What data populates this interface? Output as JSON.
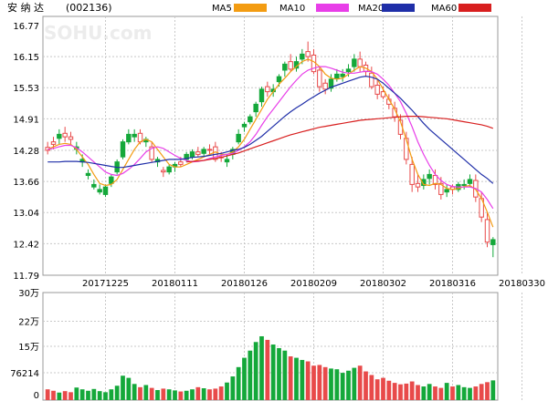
{
  "header": {
    "stock_name": "安 纳 达",
    "stock_code": "(002136)",
    "legend": [
      {
        "label": "MA5",
        "color": "#f39c12"
      },
      {
        "label": "MA10",
        "color": "#e83ee8"
      },
      {
        "label": "MA20",
        "color": "#1f2ea8"
      },
      {
        "label": "MA60",
        "color": "#d81f1f"
      }
    ]
  },
  "watermark": "SOHU.com",
  "chart_data": {
    "type": "candlestick",
    "colors": {
      "up": "#e84a4a",
      "down": "#14a83a",
      "grid": "#c8c8c8"
    },
    "price_axis": {
      "range": [
        11.79,
        16.77
      ],
      "ticks": [
        "16.77",
        "16.15",
        "15.53",
        "14.91",
        "14.28",
        "13.66",
        "13.04",
        "12.42",
        "11.79"
      ]
    },
    "volume_axis": {
      "range": [
        0,
        300000
      ],
      "ticks": [
        {
          "label": "30万",
          "value": 300000
        },
        {
          "label": "22万",
          "value": 220000
        },
        {
          "label": "15万",
          "value": 150000
        },
        {
          "label": "76214",
          "value": 76214
        },
        {
          "label": "0",
          "value": 0
        }
      ]
    },
    "x_labels": [
      {
        "label": "20171225",
        "index": 10
      },
      {
        "label": "20180111",
        "index": 22
      },
      {
        "label": "20180126",
        "index": 34
      },
      {
        "label": "20180209",
        "index": 46
      },
      {
        "label": "20180302",
        "index": 58
      },
      {
        "label": "20180316",
        "index": 70
      },
      {
        "label": "20180330",
        "index": 82
      }
    ],
    "close": [
      14.34,
      14.45,
      14.52,
      14.62,
      14.55,
      14.3,
      14.05,
      13.78,
      13.55,
      13.45,
      13.4,
      13.62,
      13.85,
      14.15,
      14.45,
      14.55,
      14.62,
      14.45,
      14.35,
      14.05,
      13.88,
      13.85,
      13.95,
      14.05,
      14.1,
      14.15,
      14.25,
      14.22,
      14.3,
      14.35,
      14.15,
      14.05,
      14.2,
      14.45,
      14.75,
      14.85,
      15.05,
      15.25,
      15.55,
      15.45,
      15.65,
      15.88,
      16.05,
      15.92,
      16.1,
      16.25,
      16.18,
      15.88,
      15.62,
      15.52,
      15.72,
      15.75,
      15.85,
      15.95,
      16.1,
      15.98,
      15.82,
      15.58,
      15.45,
      15.3,
      15.12,
      14.88,
      14.52,
      14.0,
      13.62,
      13.58,
      13.72,
      13.78,
      13.62,
      13.45,
      13.55,
      13.5,
      13.58,
      13.62,
      13.68,
      13.32,
      12.9,
      12.4
    ],
    "open": [
      14.28,
      14.4,
      14.6,
      14.55,
      14.5,
      14.35,
      14.1,
      13.82,
      13.6,
      13.5,
      13.55,
      13.75,
      14.05,
      14.45,
      14.6,
      14.6,
      14.45,
      14.5,
      14.1,
      14.1,
      13.85,
      13.95,
      14.0,
      14.0,
      14.2,
      14.25,
      14.2,
      14.3,
      14.3,
      14.1,
      14.15,
      14.1,
      14.3,
      14.6,
      14.8,
      14.95,
      15.2,
      15.5,
      15.45,
      15.5,
      15.75,
      16.0,
      15.9,
      16.05,
      16.2,
      16.15,
      15.85,
      15.55,
      15.5,
      15.7,
      15.8,
      15.8,
      15.9,
      16.1,
      15.95,
      15.85,
      15.55,
      15.4,
      15.35,
      15.2,
      14.95,
      14.6,
      14.1,
      13.6,
      13.55,
      13.7,
      13.8,
      13.6,
      13.4,
      13.5,
      13.5,
      13.6,
      13.6,
      13.7,
      13.35,
      12.95,
      12.45,
      12.5
    ],
    "high": [
      14.45,
      14.55,
      14.7,
      14.75,
      14.65,
      14.45,
      14.2,
      13.9,
      13.7,
      13.6,
      13.6,
      13.8,
      14.1,
      14.5,
      14.7,
      14.7,
      14.7,
      14.55,
      14.45,
      14.15,
      13.95,
      14.0,
      14.05,
      14.15,
      14.25,
      14.3,
      14.35,
      14.35,
      14.4,
      14.45,
      14.25,
      14.2,
      14.35,
      14.7,
      14.85,
      15.0,
      15.25,
      15.55,
      15.65,
      15.6,
      15.8,
      16.05,
      16.2,
      16.15,
      16.3,
      16.45,
      16.3,
      15.95,
      15.7,
      15.8,
      15.9,
      15.9,
      16.0,
      16.2,
      16.25,
      16.05,
      15.95,
      15.7,
      15.55,
      15.4,
      15.25,
      15.0,
      14.65,
      14.15,
      13.8,
      13.8,
      13.9,
      13.9,
      13.75,
      13.6,
      13.6,
      13.65,
      13.7,
      13.8,
      13.8,
      13.45,
      13.05,
      12.55
    ],
    "low": [
      14.2,
      14.3,
      14.4,
      14.45,
      14.4,
      14.2,
      13.95,
      13.7,
      13.5,
      13.4,
      13.35,
      13.55,
      13.8,
      14.1,
      14.4,
      14.45,
      14.4,
      14.35,
      14.05,
      13.95,
      13.75,
      13.8,
      13.85,
      13.95,
      14.05,
      14.1,
      14.15,
      14.15,
      14.2,
      14.05,
      14.05,
      13.95,
      14.1,
      14.4,
      14.65,
      14.8,
      14.95,
      15.15,
      15.35,
      15.35,
      15.55,
      15.75,
      15.85,
      15.85,
      16.0,
      16.05,
      15.8,
      15.45,
      15.4,
      15.45,
      15.65,
      15.65,
      15.75,
      15.85,
      15.85,
      15.75,
      15.5,
      15.3,
      15.3,
      15.1,
      14.85,
      14.5,
      14.0,
      13.45,
      13.45,
      13.5,
      13.6,
      13.5,
      13.3,
      13.35,
      13.4,
      13.45,
      13.5,
      13.55,
      13.25,
      12.85,
      12.35,
      12.15
    ],
    "volume": [
      30000,
      26000,
      21000,
      25000,
      22000,
      35000,
      30000,
      26000,
      31000,
      25000,
      22000,
      30000,
      40000,
      68000,
      62000,
      45000,
      36000,
      42000,
      34000,
      28000,
      32000,
      30000,
      27000,
      24000,
      26000,
      30000,
      36000,
      33000,
      30000,
      32000,
      38000,
      49000,
      66000,
      92000,
      118000,
      138000,
      162000,
      178000,
      168000,
      155000,
      145000,
      138000,
      122000,
      118000,
      112000,
      108000,
      96000,
      98000,
      92000,
      88000,
      86000,
      76000,
      82000,
      90000,
      96000,
      80000,
      70000,
      58000,
      62000,
      54000,
      48000,
      44000,
      46000,
      52000,
      42000,
      38000,
      45000,
      38000,
      34000,
      48000,
      38000,
      42000,
      36000,
      34000,
      38000,
      45000,
      50000,
      55000
    ],
    "ma5": [
      14.3,
      14.35,
      14.4,
      14.42,
      14.4,
      14.3,
      14.15,
      14.0,
      13.8,
      13.62,
      13.58,
      13.6,
      13.7,
      13.9,
      14.1,
      14.3,
      14.45,
      14.5,
      14.45,
      14.3,
      14.15,
      14.0,
      13.95,
      13.95,
      14.0,
      14.05,
      14.1,
      14.15,
      14.2,
      14.25,
      14.2,
      14.2,
      14.25,
      14.35,
      14.5,
      14.7,
      14.9,
      15.1,
      15.3,
      15.45,
      15.6,
      15.72,
      15.85,
      15.95,
      16.05,
      16.1,
      16.05,
      15.95,
      15.8,
      15.72,
      15.7,
      15.72,
      15.8,
      15.88,
      15.95,
      15.92,
      15.85,
      15.7,
      15.5,
      15.3,
      15.1,
      14.85,
      14.5,
      14.1,
      13.8,
      13.6,
      13.58,
      13.62,
      13.6,
      13.52,
      13.5,
      13.52,
      13.56,
      13.58,
      13.5,
      13.32,
      13.05,
      12.75
    ],
    "ma10": [
      14.3,
      14.32,
      14.35,
      14.38,
      14.38,
      14.33,
      14.25,
      14.15,
      14.05,
      13.95,
      13.85,
      13.8,
      13.78,
      13.82,
      13.9,
      14.0,
      14.12,
      14.25,
      14.32,
      14.35,
      14.32,
      14.25,
      14.18,
      14.12,
      14.08,
      14.05,
      14.06,
      14.08,
      14.12,
      14.15,
      14.18,
      14.2,
      14.22,
      14.28,
      14.35,
      14.45,
      14.6,
      14.78,
      14.95,
      15.1,
      15.25,
      15.4,
      15.55,
      15.68,
      15.8,
      15.88,
      15.92,
      15.95,
      15.95,
      15.92,
      15.88,
      15.84,
      15.82,
      15.82,
      15.84,
      15.86,
      15.85,
      15.8,
      15.7,
      15.58,
      15.42,
      15.25,
      15.02,
      14.75,
      14.45,
      14.2,
      13.98,
      13.8,
      13.68,
      13.6,
      13.56,
      13.55,
      13.55,
      13.55,
      13.52,
      13.45,
      13.3,
      13.12
    ],
    "ma20": [
      14.05,
      14.05,
      14.05,
      14.06,
      14.06,
      14.06,
      14.05,
      14.04,
      14.02,
      14.0,
      13.98,
      13.96,
      13.94,
      13.94,
      13.96,
      13.98,
      14.0,
      14.02,
      14.04,
      14.06,
      14.08,
      14.1,
      14.1,
      14.1,
      14.12,
      14.14,
      14.15,
      14.16,
      14.18,
      14.2,
      14.22,
      14.25,
      14.28,
      14.3,
      14.34,
      14.4,
      14.48,
      14.56,
      14.66,
      14.76,
      14.86,
      14.96,
      15.05,
      15.13,
      15.2,
      15.28,
      15.35,
      15.42,
      15.48,
      15.54,
      15.58,
      15.62,
      15.66,
      15.7,
      15.74,
      15.76,
      15.74,
      15.7,
      15.62,
      15.52,
      15.42,
      15.32,
      15.2,
      15.08,
      14.95,
      14.82,
      14.7,
      14.6,
      14.5,
      14.4,
      14.3,
      14.2,
      14.1,
      14.0,
      13.9,
      13.8,
      13.72,
      13.62
    ],
    "ma60": [
      null,
      null,
      null,
      null,
      null,
      null,
      null,
      null,
      null,
      null,
      null,
      null,
      null,
      null,
      null,
      null,
      null,
      null,
      null,
      null,
      null,
      null,
      null,
      null,
      14.05,
      14.06,
      14.07,
      14.08,
      14.1,
      14.12,
      14.14,
      14.17,
      14.2,
      14.23,
      14.27,
      14.31,
      14.35,
      14.39,
      14.43,
      14.47,
      14.51,
      14.55,
      14.59,
      14.62,
      14.65,
      14.68,
      14.71,
      14.74,
      14.76,
      14.78,
      14.8,
      14.82,
      14.84,
      14.86,
      14.88,
      14.89,
      14.9,
      14.91,
      14.92,
      14.93,
      14.94,
      14.95,
      14.96,
      14.96,
      14.96,
      14.95,
      14.94,
      14.93,
      14.92,
      14.91,
      14.89,
      14.87,
      14.85,
      14.83,
      14.81,
      14.79,
      14.76,
      14.72
    ]
  }
}
